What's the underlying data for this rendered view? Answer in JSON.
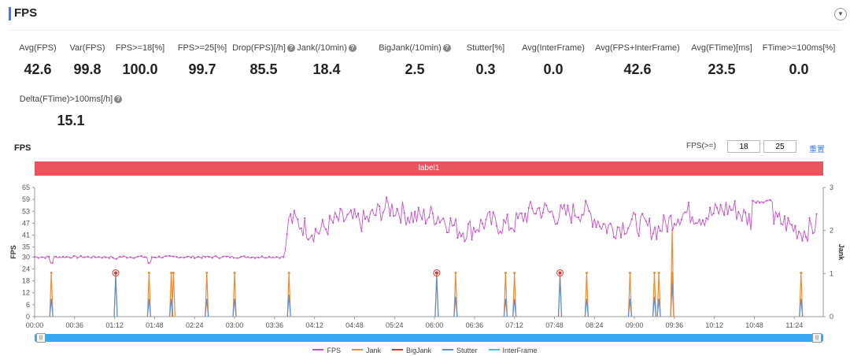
{
  "header": {
    "title": "FPS",
    "collapse_icon": "chevron-down-icon"
  },
  "metrics": [
    {
      "label": "Avg(FPS)",
      "value": "42.6",
      "help": false
    },
    {
      "label": "Var(FPS)",
      "value": "99.8",
      "help": false
    },
    {
      "label": "FPS>=18[%]",
      "value": "100.0",
      "help": false
    },
    {
      "label": "FPS>=25[%]",
      "value": "99.7",
      "help": false
    },
    {
      "label": "Drop(FPS)[/h]",
      "value": "85.5",
      "help": true
    },
    {
      "label": "Jank(/10min)",
      "value": "18.4",
      "help": true
    },
    {
      "label": "BigJank(/10min)",
      "value": "2.5",
      "help": true
    },
    {
      "label": "Stutter[%]",
      "value": "0.3",
      "help": false
    },
    {
      "label": "Avg(InterFrame)",
      "value": "0.0",
      "help": false
    },
    {
      "label": "Avg(FPS+InterFrame)",
      "value": "42.6",
      "help": false
    },
    {
      "label": "Avg(FTime)[ms]",
      "value": "23.5",
      "help": false
    },
    {
      "label": "FTime>=100ms[%]",
      "value": "0.0",
      "help": false
    },
    {
      "label": "Delta(FTime)>100ms[/h]",
      "value": "15.1",
      "help": true
    }
  ],
  "chart_section": {
    "title": "FPS",
    "fps_filter_label": "FPS(>=)",
    "fps_threshold_1": "18",
    "fps_threshold_2": "25",
    "reset_label": "重置",
    "band_label": "label1"
  },
  "colors": {
    "fps": "#c94fc9",
    "jank": "#f08a30",
    "bigjank": "#e03030",
    "stutter": "#5b8fd8",
    "interframe": "#3cc8d8",
    "band": "#e9555f",
    "slider": "#3aa8f0"
  },
  "chart_data": {
    "type": "line",
    "ylabel": "FPS",
    "y2label": "Jank",
    "ylim": [
      0,
      65
    ],
    "y2lim": [
      0,
      3
    ],
    "yticks": [
      0,
      6,
      12,
      18,
      24,
      30,
      35,
      41,
      47,
      53,
      59,
      65
    ],
    "y2ticks": [
      0,
      1,
      2,
      3
    ],
    "xlim_seconds": [
      0,
      710
    ],
    "xticks": [
      "00:00",
      "00:36",
      "01:12",
      "01:48",
      "02:24",
      "03:00",
      "03:36",
      "04:12",
      "04:48",
      "05:24",
      "06:00",
      "06:36",
      "07:12",
      "07:48",
      "08:24",
      "09:00",
      "09:36",
      "10:12",
      "10:48",
      "11:24"
    ],
    "fps_pattern": "≈30 FPS from 00:00 to ~03:45, then fluctuating between ~40 and ~58 FPS until ~11:50",
    "jank_events_time": [
      "00:15",
      "01:13",
      "01:43",
      "02:03",
      "02:05",
      "02:35",
      "03:00",
      "03:49",
      "06:02",
      "06:19",
      "07:04",
      "07:12",
      "07:53",
      "08:17",
      "08:56",
      "09:18",
      "09:22",
      "09:34",
      "11:30"
    ],
    "bigjank_events_time": [
      "01:13",
      "06:02",
      "07:53"
    ],
    "stutter_events_time": [
      "00:15",
      "01:13",
      "01:43",
      "02:03",
      "02:35",
      "03:00",
      "03:49",
      "06:02",
      "06:19",
      "07:04",
      "07:12",
      "07:53",
      "08:17",
      "08:56",
      "09:18",
      "09:22",
      "09:34",
      "11:30"
    ],
    "legend": [
      "FPS",
      "Jank",
      "BigJank",
      "Stutter",
      "InterFrame"
    ]
  }
}
